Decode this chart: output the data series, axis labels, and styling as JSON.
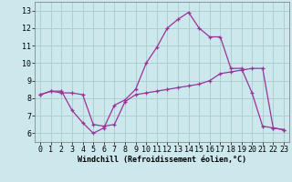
{
  "xlabel": "Windchill (Refroidissement éolien,°C)",
  "xlim": [
    -0.5,
    23.5
  ],
  "ylim": [
    5.5,
    13.5
  ],
  "xticks": [
    0,
    1,
    2,
    3,
    4,
    5,
    6,
    7,
    8,
    9,
    10,
    11,
    12,
    13,
    14,
    15,
    16,
    17,
    18,
    19,
    20,
    21,
    22,
    23
  ],
  "yticks": [
    6,
    7,
    8,
    9,
    10,
    11,
    12,
    13
  ],
  "background_color": "#cce8ec",
  "grid_color": "#aacccc",
  "line_color": "#993399",
  "line1_x": [
    0,
    1,
    2,
    3,
    4,
    5,
    6,
    7,
    8,
    9,
    10,
    11,
    12,
    13,
    14,
    15,
    16,
    17,
    18,
    19,
    20,
    21,
    22,
    23
  ],
  "line1_y": [
    8.2,
    8.4,
    8.4,
    7.3,
    6.6,
    6.0,
    6.3,
    7.6,
    7.9,
    8.5,
    10.0,
    10.9,
    12.0,
    12.5,
    12.9,
    12.0,
    11.5,
    11.5,
    9.7,
    9.7,
    8.3,
    6.4,
    6.3,
    6.2
  ],
  "line2_x": [
    0,
    1,
    2,
    3,
    4,
    5,
    6,
    7,
    8,
    9,
    10,
    11,
    12,
    13,
    14,
    15,
    16,
    17,
    18,
    19,
    20,
    21,
    22,
    23
  ],
  "line2_y": [
    8.2,
    8.4,
    8.3,
    8.3,
    8.2,
    6.5,
    6.4,
    6.5,
    7.8,
    8.2,
    8.3,
    8.4,
    8.5,
    8.6,
    8.7,
    8.8,
    9.0,
    9.4,
    9.5,
    9.6,
    9.7,
    9.7,
    6.3,
    6.2
  ],
  "tick_fontsize": 6,
  "xlabel_fontsize": 6,
  "fig_width": 3.2,
  "fig_height": 2.0,
  "dpi": 100
}
